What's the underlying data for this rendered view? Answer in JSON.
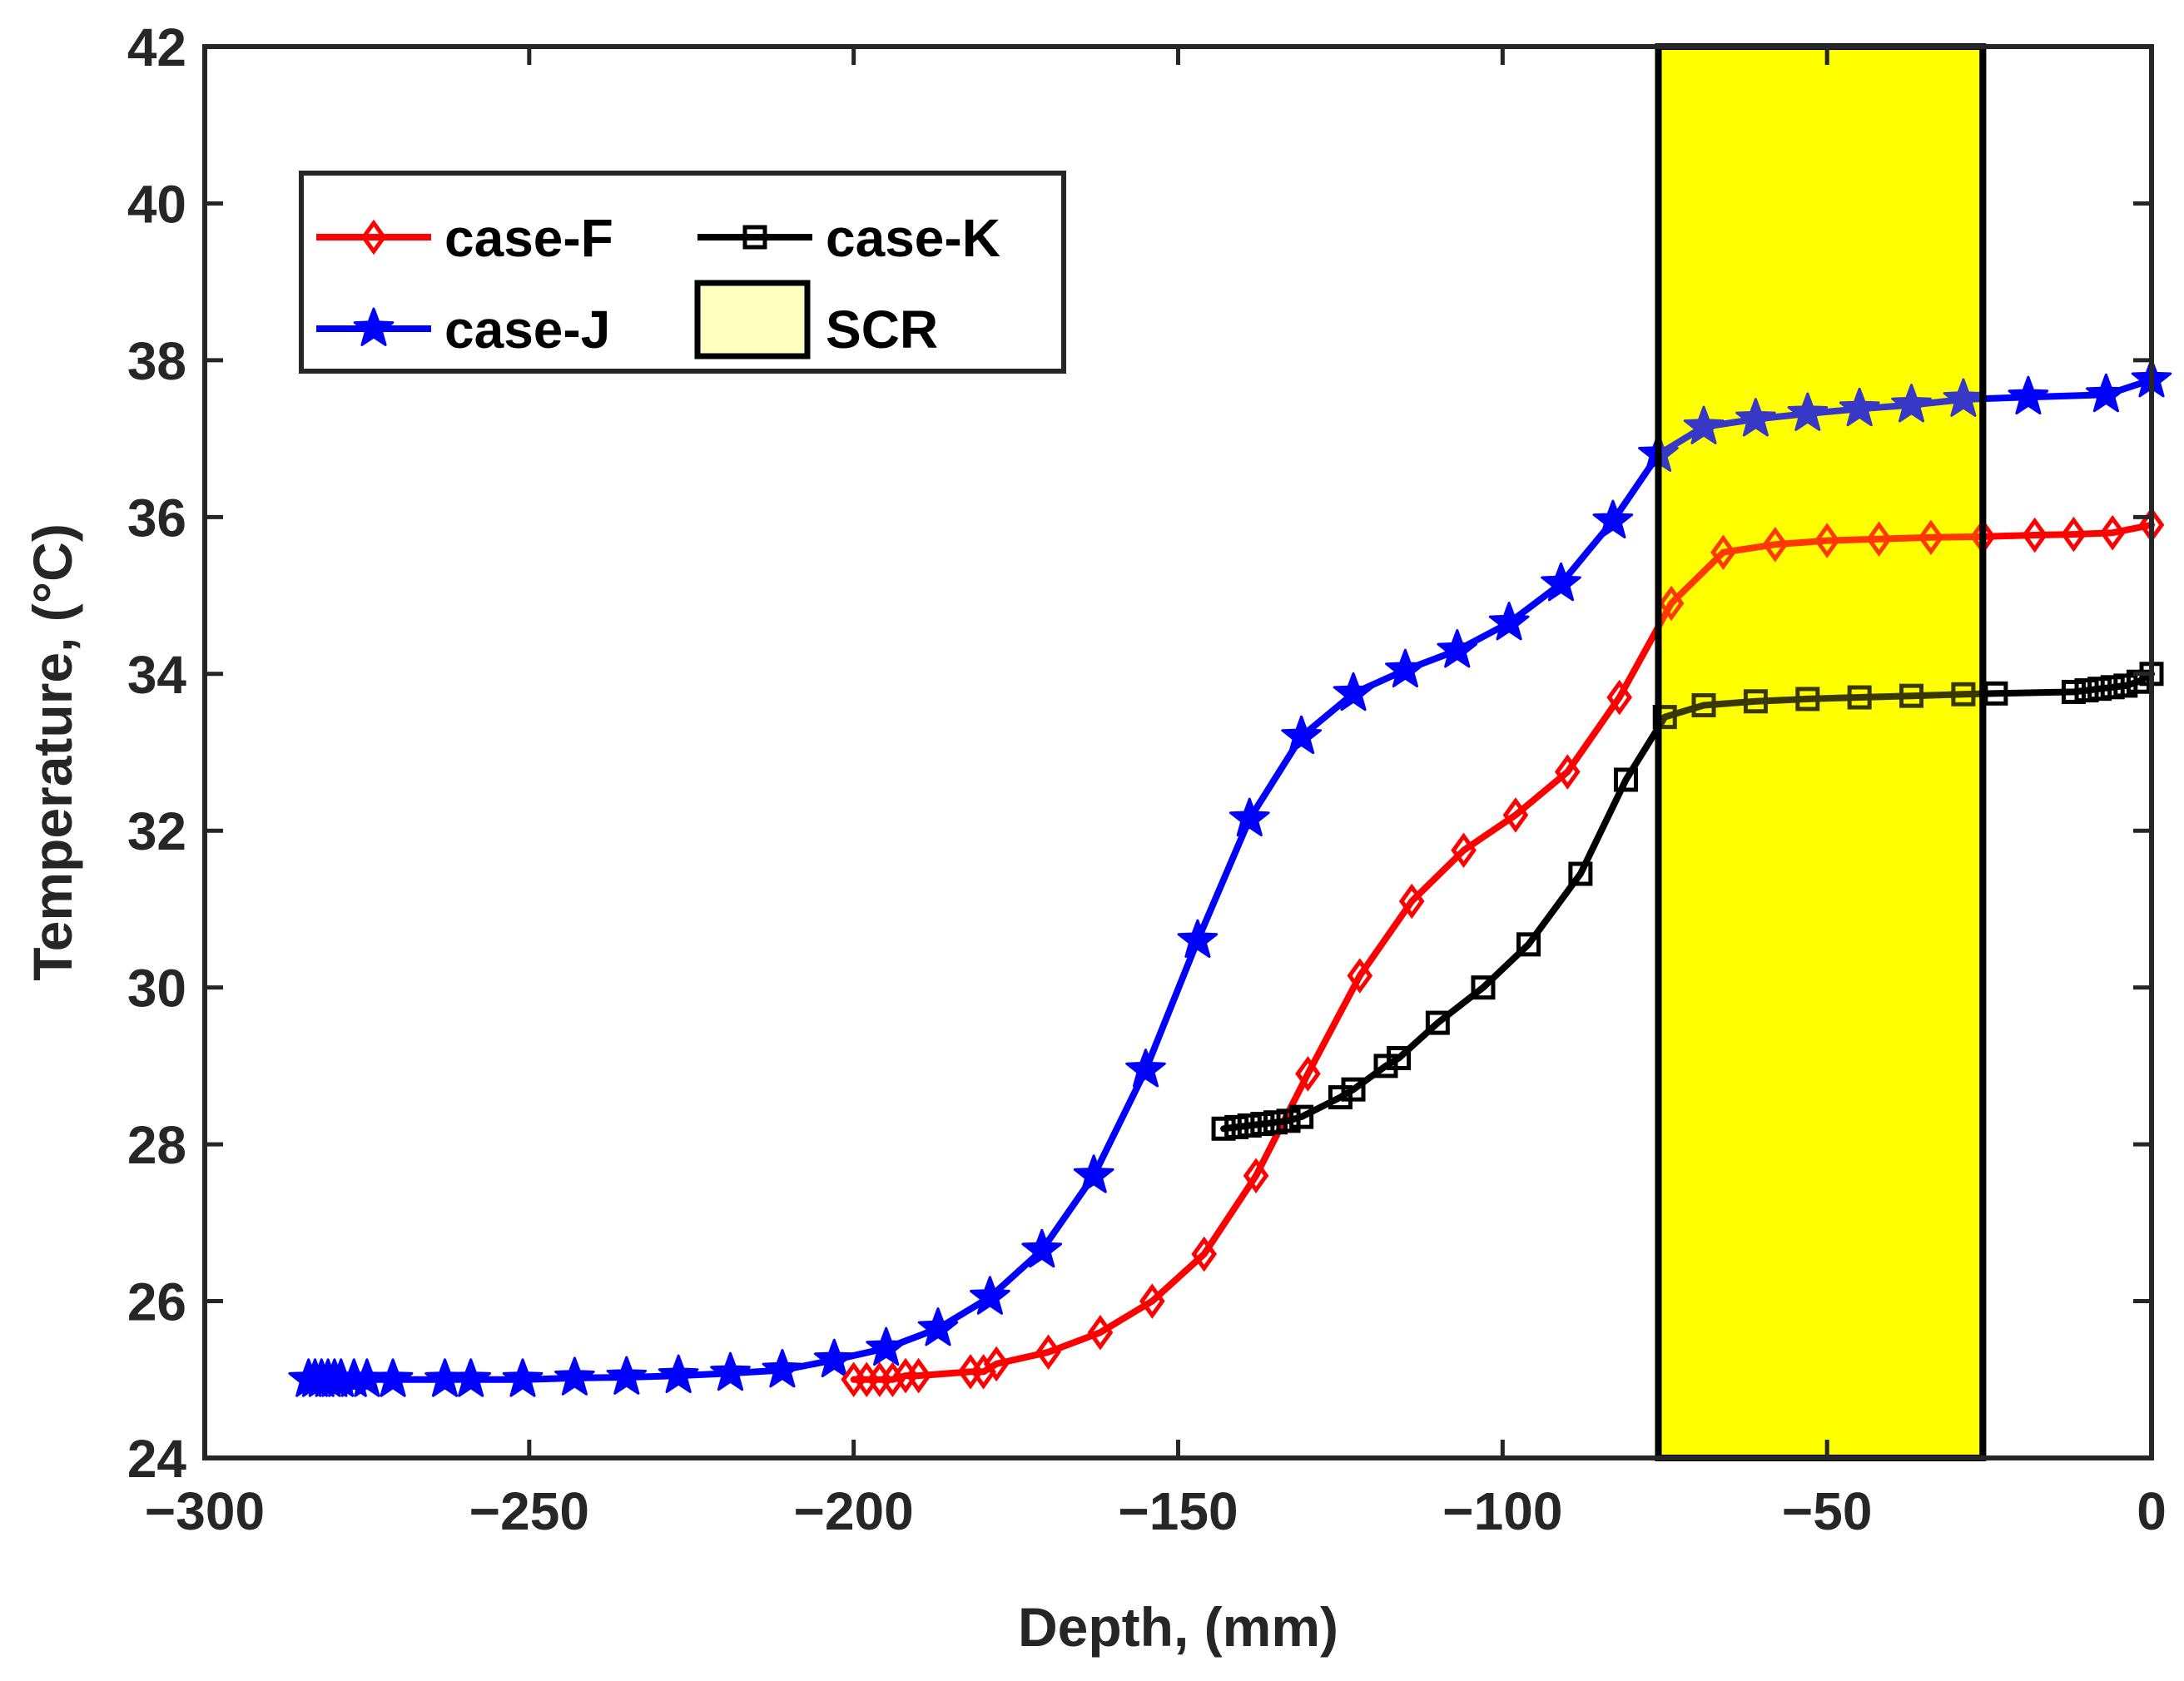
{
  "chart_data": {
    "type": "line",
    "title": "",
    "xlabel": "Depth, (mm)",
    "ylabel": "Temperature, (°C)",
    "xlim": [
      -300,
      0
    ],
    "ylim": [
      24,
      42
    ],
    "xticks": [
      -300,
      -250,
      -200,
      -150,
      -100,
      -50,
      0
    ],
    "xtick_labels": [
      "−300",
      "−250",
      "−200",
      "−150",
      "−100",
      "−50",
      "0"
    ],
    "yticks": [
      24,
      26,
      28,
      30,
      32,
      34,
      36,
      38,
      40,
      42
    ],
    "ytick_labels": [
      "24",
      "26",
      "28",
      "30",
      "32",
      "34",
      "36",
      "38",
      "40",
      "42"
    ],
    "grid": false,
    "legend_position": "top-left",
    "shaded_region": {
      "name": "SCR",
      "x_range": [
        -76,
        -26
      ],
      "color": "#ffff00",
      "legend_color": "#ffffc0"
    },
    "series": [
      {
        "name": "case-F",
        "color": "#ff0000",
        "marker": "diamond",
        "x": [
          -200,
          -198,
          -196,
          -194,
          -192,
          -190,
          -182,
          -180,
          -178,
          -170,
          -162,
          -154,
          -146,
          -138,
          -130,
          -122,
          -114,
          -106,
          -98,
          -90,
          -82,
          -74,
          -66,
          -58,
          -50,
          -42,
          -34,
          -26,
          -18,
          -12,
          -6,
          0
        ],
        "y": [
          25.0,
          25.0,
          25.0,
          25.0,
          25.05,
          25.05,
          25.1,
          25.1,
          25.2,
          25.35,
          25.6,
          26.0,
          26.6,
          27.6,
          28.9,
          30.15,
          31.1,
          31.75,
          32.2,
          32.75,
          33.7,
          34.9,
          35.55,
          35.65,
          35.7,
          35.72,
          35.74,
          35.75,
          35.77,
          35.78,
          35.8,
          35.9
        ]
      },
      {
        "name": "case-K",
        "color": "#000000",
        "marker": "square",
        "x": [
          -143,
          -141,
          -139,
          -137,
          -135,
          -133,
          -131,
          -125,
          -123,
          -118,
          -116,
          -110,
          -103,
          -96,
          -88,
          -81,
          -75,
          -69,
          -61,
          -53,
          -45,
          -37,
          -29,
          -24,
          -12,
          -10,
          -8,
          -6,
          -4,
          -2,
          0
        ],
        "y": [
          28.2,
          28.22,
          28.24,
          28.26,
          28.28,
          28.3,
          28.35,
          28.6,
          28.7,
          29.0,
          29.1,
          29.55,
          30.0,
          30.55,
          31.45,
          32.65,
          33.45,
          33.6,
          33.65,
          33.68,
          33.7,
          33.72,
          33.74,
          33.75,
          33.77,
          33.79,
          33.81,
          33.83,
          33.85,
          33.9,
          34.0
        ]
      },
      {
        "name": "case-J",
        "color": "#0000ff",
        "marker": "star",
        "x": [
          -284,
          -283,
          -282,
          -281,
          -280,
          -279,
          -277,
          -275,
          -271,
          -263,
          -259,
          -251,
          -243,
          -235,
          -227,
          -219,
          -211,
          -203,
          -195,
          -187,
          -179,
          -171,
          -163,
          -155,
          -147,
          -139,
          -131,
          -123,
          -115,
          -107,
          -99,
          -91,
          -83,
          -76,
          -69,
          -61,
          -53,
          -45,
          -37,
          -29,
          -19,
          -7,
          0
        ],
        "y": [
          25.0,
          25.0,
          25.0,
          25.0,
          25.0,
          25.0,
          25.0,
          25.0,
          25.0,
          25.0,
          25.0,
          25.0,
          25.02,
          25.03,
          25.05,
          25.08,
          25.12,
          25.25,
          25.4,
          25.65,
          26.05,
          26.65,
          27.6,
          28.95,
          30.6,
          32.15,
          33.2,
          33.75,
          34.05,
          34.3,
          34.65,
          35.15,
          35.95,
          36.8,
          37.15,
          37.25,
          37.32,
          37.38,
          37.43,
          37.5,
          37.53,
          37.56,
          37.75
        ]
      }
    ]
  }
}
